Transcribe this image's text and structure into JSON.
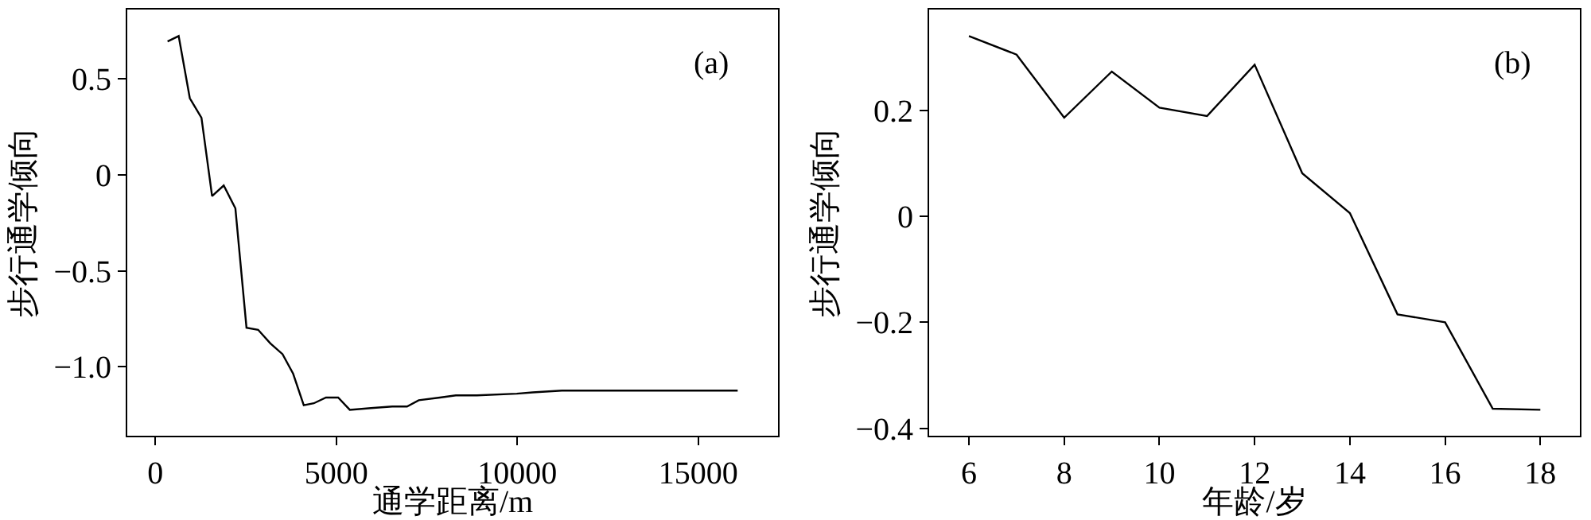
{
  "chart_data": [
    {
      "type": "line",
      "xlabel": "通学距离/m",
      "ylabel": "步行通学倾向",
      "annotations": [
        "(a)"
      ],
      "x": [
        337,
        644,
        952,
        1274,
        1567,
        1889,
        2211,
        2518,
        2840,
        3177,
        3514,
        3807,
        4100,
        4378,
        4714,
        5051,
        5373,
        5959,
        6545,
        6955,
        7277,
        7862,
        8302,
        8887,
        9985,
        10425,
        11230,
        13280,
        16090
      ],
      "series": [
        {
          "color": "#000000",
          "values": [
            0.696,
            0.724,
            0.4,
            0.298,
            -0.11,
            -0.055,
            -0.174,
            -0.796,
            -0.807,
            -0.878,
            -0.934,
            -1.036,
            -1.2,
            -1.19,
            -1.16,
            -1.16,
            -1.224,
            -1.215,
            -1.207,
            -1.207,
            -1.174,
            -1.16,
            -1.149,
            -1.149,
            -1.14,
            -1.133,
            -1.124,
            -1.124,
            -1.124
          ]
        }
      ],
      "xlim": [
        -776,
        17204
      ],
      "xticks": [
        0,
        5000,
        10000,
        15000
      ],
      "ylim": [
        -1.359,
        0.862
      ],
      "yticks": [
        {
          "value": -1.0,
          "label": "−1.0"
        },
        {
          "value": -0.5,
          "label": "−0.5"
        },
        0,
        0.5
      ],
      "grid": false,
      "marker": "none",
      "line_style": "solid"
    },
    {
      "type": "line",
      "xlabel": "年龄/岁",
      "ylabel": "步行通学倾向",
      "annotations": [
        "(b)"
      ],
      "x": [
        6,
        7,
        8,
        9,
        10,
        11,
        12,
        13,
        14,
        15,
        16,
        17,
        18
      ],
      "series": [
        {
          "color": "#000000",
          "values": [
            0.34,
            0.305,
            0.186,
            0.273,
            0.205,
            0.189,
            0.286,
            0.081,
            0.006,
            -0.185,
            -0.2,
            -0.363,
            -0.365
          ]
        }
      ],
      "xlim": [
        5.164,
        18.83
      ],
      "xticks": [
        6,
        8,
        10,
        12,
        14,
        16,
        18
      ],
      "ylim": [
        -0.414,
        0.39
      ],
      "yticks": [
        {
          "value": -0.4,
          "label": "−0.4"
        },
        {
          "value": -0.2,
          "label": "−0.2"
        },
        0,
        0.2
      ],
      "grid": false,
      "marker": "none",
      "line_style": "solid"
    }
  ]
}
